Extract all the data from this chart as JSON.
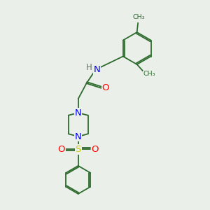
{
  "bg_color": "#eaefea",
  "bond_color": "#2d6b2d",
  "atom_colors": {
    "N": "#0000ee",
    "O": "#ff0000",
    "S": "#cccc00",
    "H": "#607060",
    "C": "#2d6b2d"
  },
  "lw": 1.3,
  "font_size": 9.5
}
